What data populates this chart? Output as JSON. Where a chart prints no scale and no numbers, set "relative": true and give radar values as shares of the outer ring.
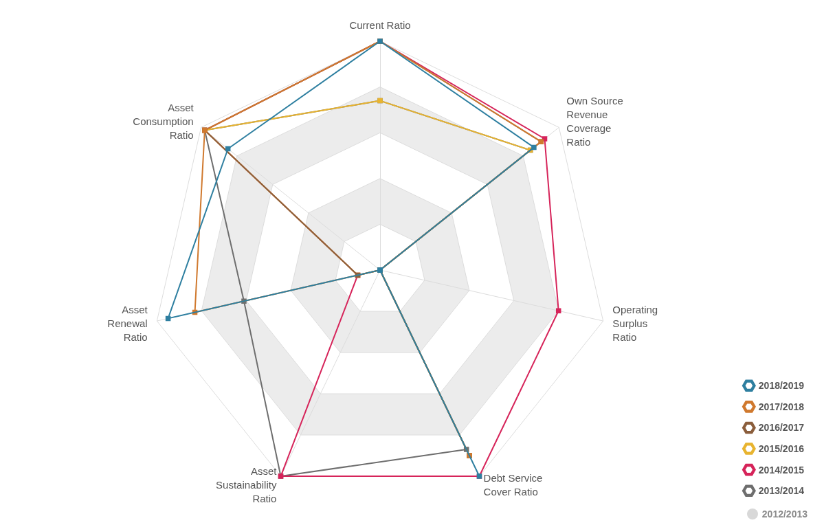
{
  "chart_data": {
    "type": "radar",
    "relative": true,
    "categories": [
      "Current Ratio",
      "Own Source\nRevenue\nCoverage\nRatio",
      "Operating\nSurplus\nRatio",
      "Debt Service\nCover Ratio",
      "Asset\nSustainability\nRatio",
      "Asset\nRenewal\nRatio",
      "Asset\nConsumption\nRatio"
    ],
    "series": [
      {
        "name": "2018/2019",
        "color": "#2e7fa0",
        "values": [
          1,
          0.86,
          0,
          1,
          0,
          0.95,
          0.85
        ]
      },
      {
        "name": "2017/2018",
        "color": "#d0792e",
        "values": [
          1,
          0.9,
          0,
          0.9,
          0,
          0.83,
          0.98
        ]
      },
      {
        "name": "2016/2017",
        "color": "#8b5e3c",
        "values": [
          1,
          0.9,
          0,
          0.9,
          0,
          0.1,
          0.98
        ]
      },
      {
        "name": "2015/2016",
        "color": "#e8b430",
        "values": [
          0.74,
          0.84,
          0,
          0.9,
          0,
          0.1,
          0.98
        ]
      },
      {
        "name": "2014/2015",
        "color": "#d6245a",
        "values": [
          1,
          0.92,
          0.8,
          1,
          1,
          0.1,
          0.98
        ]
      },
      {
        "name": "2013/2014",
        "color": "#6e6e6e",
        "values": [
          0.74,
          0.84,
          0,
          0.87,
          1,
          0.61,
          0.98
        ]
      }
    ],
    "annotations": [
      "2012/2013"
    ],
    "grid": true,
    "legend": "bottom right",
    "marker": "square",
    "line_style": "solid"
  }
}
